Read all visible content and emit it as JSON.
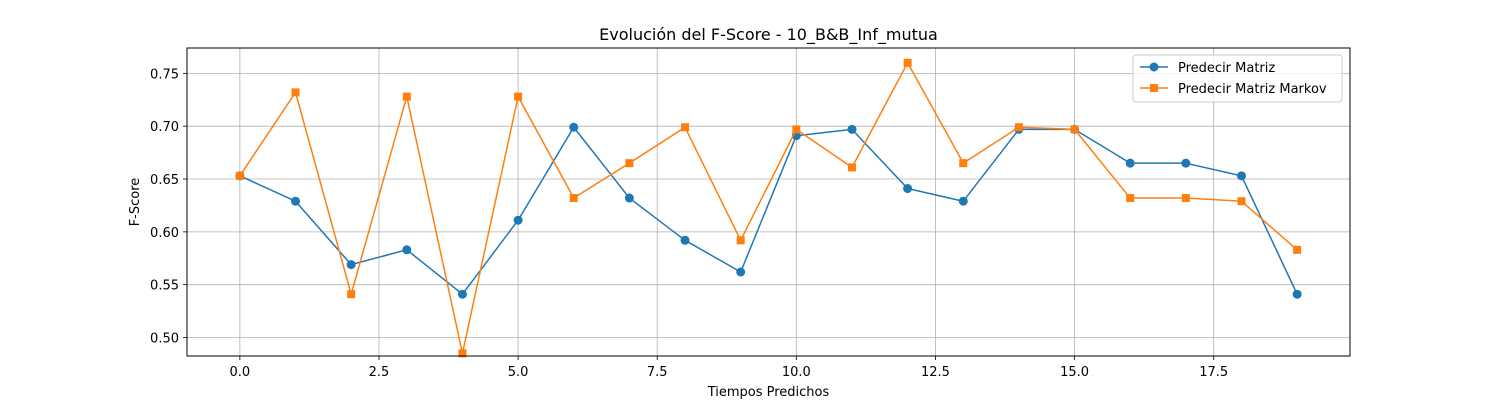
{
  "chart_data": {
    "type": "line",
    "title": "Evolución del F-Score - 10_B&B_Inf_mutua",
    "xlabel": "Tiempos Predichos",
    "ylabel": "F-Score",
    "xlim": [
      -0.95,
      19.95
    ],
    "ylim": [
      0.4825,
      0.774
    ],
    "x_ticks": [
      0.0,
      2.5,
      5.0,
      7.5,
      10.0,
      12.5,
      15.0,
      17.5
    ],
    "x_tick_labels": [
      "0.0",
      "2.5",
      "5.0",
      "7.5",
      "10.0",
      "12.5",
      "15.0",
      "17.5"
    ],
    "y_ticks": [
      0.5,
      0.55,
      0.6,
      0.65,
      0.7,
      0.75
    ],
    "y_tick_labels": [
      "0.50",
      "0.55",
      "0.60",
      "0.65",
      "0.70",
      "0.75"
    ],
    "grid": true,
    "legend_position": "top-right",
    "x": [
      0,
      1,
      2,
      3,
      4,
      5,
      6,
      7,
      8,
      9,
      10,
      11,
      12,
      13,
      14,
      15,
      16,
      17,
      18,
      19
    ],
    "series": [
      {
        "name": "Predecir Matriz",
        "color": "#1f77b4",
        "marker": "circle",
        "values": [
          0.653,
          0.629,
          0.569,
          0.583,
          0.541,
          0.611,
          0.699,
          0.632,
          0.592,
          0.562,
          0.691,
          0.697,
          0.641,
          0.629,
          0.697,
          0.697,
          0.665,
          0.665,
          0.653,
          0.541
        ]
      },
      {
        "name": "Predecir Matriz Markov",
        "color": "#ff7f0e",
        "marker": "square",
        "values": [
          0.653,
          0.732,
          0.541,
          0.728,
          0.485,
          0.728,
          0.632,
          0.665,
          0.699,
          0.592,
          0.697,
          0.661,
          0.76,
          0.665,
          0.699,
          0.697,
          0.632,
          0.632,
          0.629,
          0.583
        ]
      }
    ]
  }
}
